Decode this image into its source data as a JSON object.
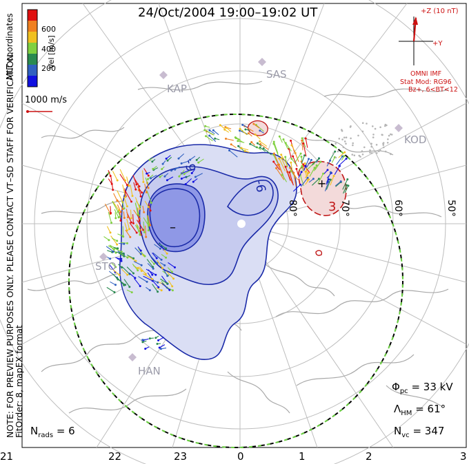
{
  "title": "24/Oct/2004 19:00–19:02 UT",
  "note": {
    "line1": "NOTE: FOR PREVIEW PURPOSES ONLY. PLEASE CONTACT VT–SD STAFF FOR VERIFICATION.",
    "line2": "FitOrder: 8, mapEX format",
    "coords": "MLT coordinates"
  },
  "colorbar": {
    "label": "Vel [m/s]",
    "ticks": [
      "600",
      "400",
      "200"
    ],
    "colors": [
      "#e01010",
      "#f08020",
      "#f0c020",
      "#80d040",
      "#2a8a50",
      "#3060c0",
      "#1010e0"
    ]
  },
  "scale_vector": {
    "label": "1000 m/s"
  },
  "imf": {
    "bz_label": "+Z (10 nT)",
    "by_label": "+Y",
    "source": "OMNI IMF",
    "model": "Stat Mod: RG96",
    "condition": "Bz+, 6<BT<12"
  },
  "stations": [
    "KAP",
    "SAS",
    "KOD",
    "STO",
    "HAN"
  ],
  "latitude_labels": [
    "80°",
    "70°",
    "60°",
    "50°"
  ],
  "contour_labels": [
    "-9",
    "-6",
    "3"
  ],
  "stats": {
    "phi_symbol": "Φ",
    "phi_sub": "pc",
    "phi_value": "= 33 kV",
    "lambda_symbol": "Λ",
    "lambda_sub": "HM",
    "lambda_value": "= 61°",
    "nvc_symbol": "N",
    "nvc_sub": "vc",
    "nvc_value": "= 347",
    "nrads_symbol": "N",
    "nrads_sub": "rads",
    "nrads_value": "= 6"
  },
  "mlt_labels": [
    "21",
    "22",
    "23",
    "0",
    "1",
    "2",
    "3"
  ],
  "colors": {
    "map_land": "#aaaaaa",
    "grid": "#bbbbbb",
    "negative_cell_fill": "#d8dcf2",
    "negative_core_fill": "#8a93e6",
    "negative_contour": "#1a2aa8",
    "positive_contour": "#c01818",
    "positive_fill": "#f2d8d8",
    "hmb_dash_a": "#000000",
    "hmb_dash_b": "#6ad040"
  }
}
